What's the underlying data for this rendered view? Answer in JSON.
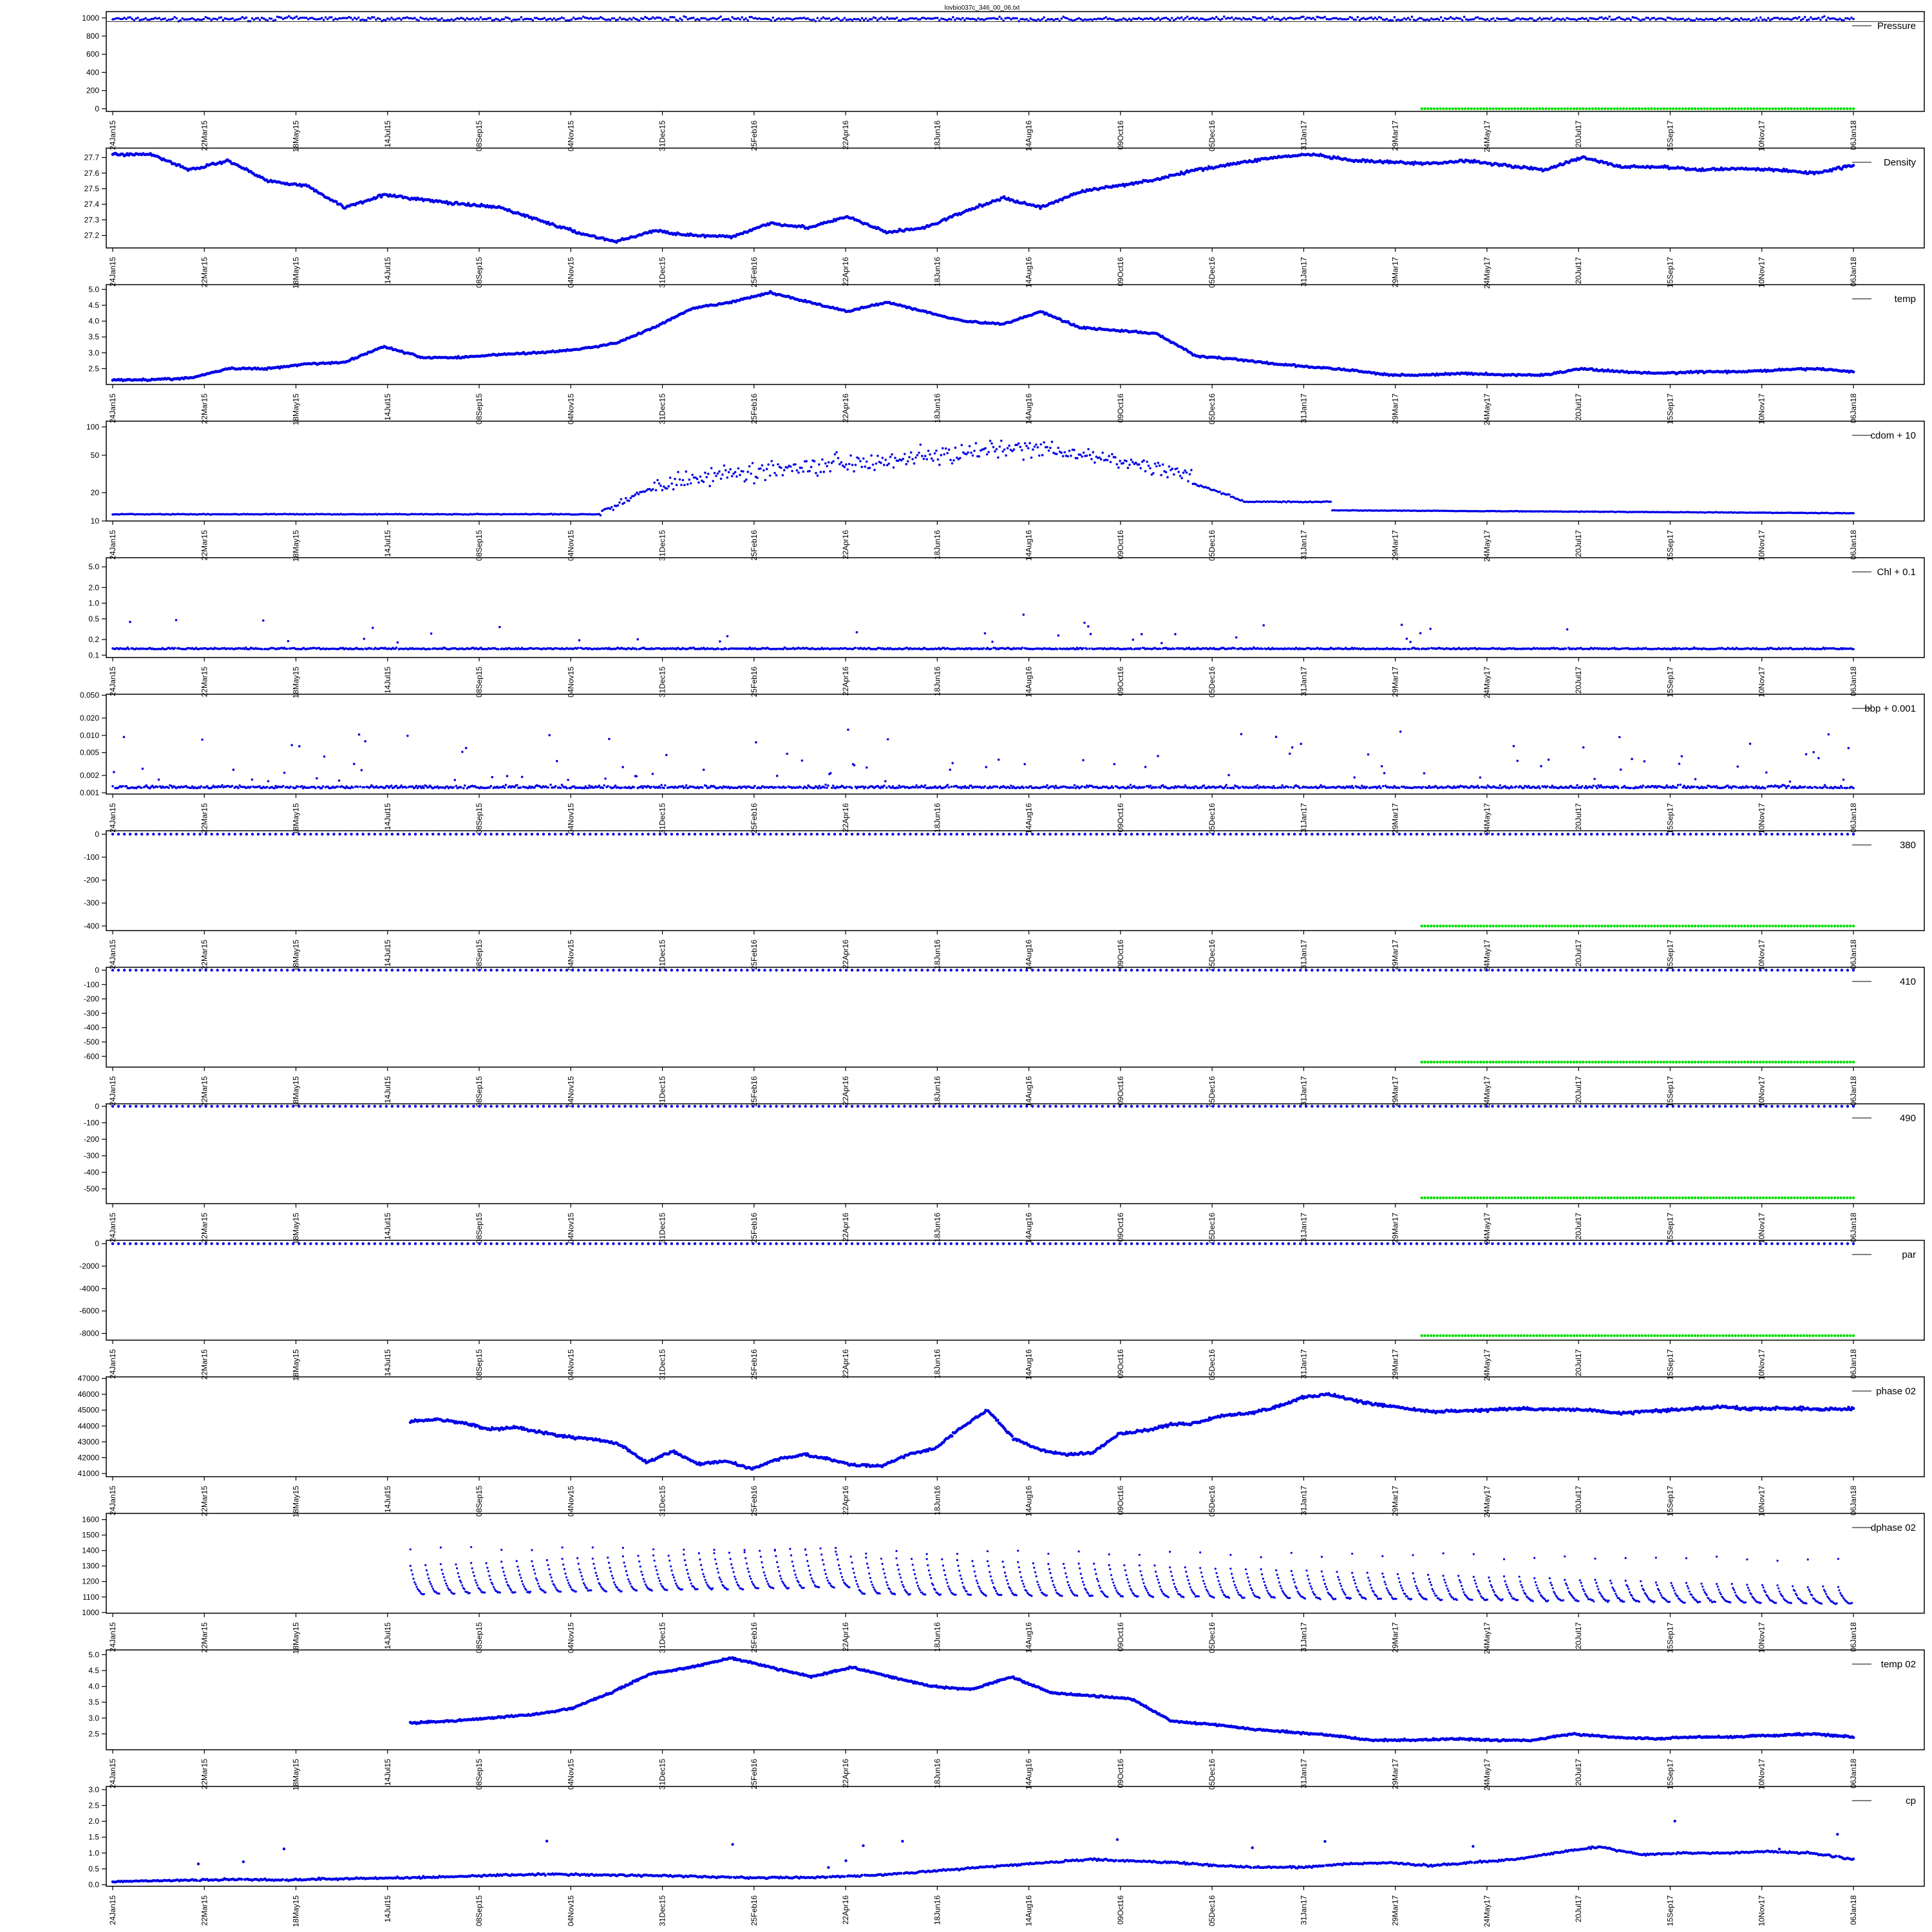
{
  "title": "lovbio037c_346_00_06.txt",
  "colors": {
    "series": "#0000e6",
    "flag": "#00dd00",
    "frame": "#000000"
  },
  "x_ticks": [
    "24Jan15",
    "22Mar15",
    "18May15",
    "14Jul15",
    "08Sep15",
    "04Nov15",
    "31Dec15",
    "25Feb16",
    "22Apr16",
    "18Jun16",
    "14Aug16",
    "09Oct16",
    "05Dec16",
    "31Jan17",
    "29Mar17",
    "24May17",
    "20Jul17",
    "15Sep17",
    "10Nov17",
    "06Jan18"
  ],
  "chart_data": [
    {
      "type": "scatter",
      "legend": "Pressure",
      "scale": "linear",
      "ylim": [
        -30,
        1070
      ],
      "yticks": [
        0,
        200,
        400,
        600,
        800,
        1000
      ],
      "ytick_labels": [
        "0",
        "200",
        "400",
        "600",
        "800",
        "1000"
      ],
      "pattern": "band",
      "x_start": 0,
      "x_end": 1,
      "base": [
        990,
        985,
        995,
        990,
        985,
        990,
        995,
        990,
        985,
        990,
        988,
        985,
        990,
        995,
        990,
        988,
        990,
        985,
        990,
        990
      ],
      "noise": 30,
      "marker": 1.8,
      "hline": 960,
      "flag": {
        "value": 0,
        "x_start": 0.752,
        "x_end": 1
      }
    },
    {
      "type": "scatter",
      "legend": "Density",
      "scale": "linear",
      "ylim": [
        27.12,
        27.76
      ],
      "yticks": [
        27.2,
        27.3,
        27.4,
        27.5,
        27.6,
        27.7
      ],
      "ytick_labels": [
        "27.2",
        "27.3",
        "27.4",
        "27.5",
        "27.6",
        "27.7"
      ],
      "pattern": "line",
      "x_start": 0,
      "x_end": 1,
      "base": [
        27.72,
        27.72,
        27.62,
        27.68,
        27.55,
        27.52,
        27.38,
        27.46,
        27.43,
        27.4,
        27.38,
        27.3,
        27.22,
        27.16,
        27.23,
        27.2,
        27.19,
        27.28,
        27.25,
        27.32,
        27.22,
        27.25,
        27.35,
        27.44,
        27.38,
        27.48,
        27.52,
        27.56,
        27.62,
        27.66,
        27.7,
        27.72,
        27.68,
        27.67,
        27.66,
        27.68,
        27.65,
        27.62,
        27.7,
        27.64,
        27.64,
        27.62,
        27.63,
        27.62,
        27.6,
        27.65
      ],
      "noise": 0.012,
      "marker": 2.4
    },
    {
      "type": "scatter",
      "legend": "temp",
      "scale": "linear",
      "ylim": [
        2.0,
        5.15
      ],
      "yticks": [
        2.5,
        3.0,
        3.5,
        4.0,
        4.5,
        5.0
      ],
      "ytick_labels": [
        "2.5",
        "3.0",
        "3.5",
        "4.0",
        "4.5",
        "5.0"
      ],
      "pattern": "line",
      "x_start": 0,
      "x_end": 1,
      "base": [
        2.15,
        2.15,
        2.2,
        2.5,
        2.5,
        2.65,
        2.7,
        3.2,
        2.85,
        2.85,
        2.95,
        3.0,
        3.1,
        3.3,
        3.8,
        4.4,
        4.6,
        4.9,
        4.6,
        4.3,
        4.6,
        4.3,
        4.0,
        3.9,
        4.3,
        3.8,
        3.7,
        3.6,
        2.9,
        2.8,
        2.65,
        2.55,
        2.45,
        2.3,
        2.3,
        2.35,
        2.3,
        2.3,
        2.5,
        2.4,
        2.35,
        2.4,
        2.4,
        2.45,
        2.5,
        2.4
      ],
      "noise": 0.04,
      "marker": 2.4
    },
    {
      "type": "scatter",
      "legend": "cdom + 10",
      "scale": "log",
      "ylim": [
        10,
        115
      ],
      "yticks": [
        10,
        20,
        50,
        100
      ],
      "ytick_labels": [
        "10",
        "20",
        "50",
        "100"
      ],
      "pattern": "cdom",
      "x_start": 0,
      "x_end": 1,
      "marker": 1.8
    },
    {
      "type": "scatter",
      "legend": "Chl + 0.1",
      "scale": "log",
      "ylim": [
        0.09,
        7.5
      ],
      "yticks": [
        0.1,
        0.2,
        0.5,
        1.0,
        2.0,
        5.0
      ],
      "ytick_labels": [
        "0.1",
        "0.2",
        "0.5",
        "1.0",
        "2.0",
        "5.0"
      ],
      "pattern": "spiky",
      "x_start": 0,
      "x_end": 1,
      "base": [
        0.13,
        0.13
      ],
      "noise": 0.012,
      "spike_max": 0.5,
      "spike_rate": 0.02,
      "marker": 1.8
    },
    {
      "type": "scatter",
      "legend": "bbp + 0.001",
      "scale": "log",
      "ylim": [
        0.00095,
        0.052
      ],
      "yticks": [
        0.001,
        0.002,
        0.005,
        0.01,
        0.02,
        0.05
      ],
      "ytick_labels": [
        "0.001",
        "0.002",
        "0.005",
        "0.010",
        "0.020",
        "0.050"
      ],
      "pattern": "spiky",
      "x_start": 0,
      "x_end": 1,
      "base": [
        0.0012,
        0.0012
      ],
      "noise": 0.0002,
      "spike_max": 0.012,
      "spike_rate": 0.06,
      "marker": 1.8
    },
    {
      "type": "scatter",
      "legend": "380",
      "scale": "linear",
      "ylim": [
        -420,
        15
      ],
      "yticks": [
        -400,
        -300,
        -200,
        -100,
        0
      ],
      "ytick_labels": [
        "-400",
        "-300",
        "-200",
        "-100",
        "0"
      ],
      "pattern": "dotted",
      "x_start": 0,
      "x_end": 1,
      "value": 0,
      "marker": 2.2,
      "flag": {
        "value": -400,
        "x_start": 0.752,
        "x_end": 1
      }
    },
    {
      "type": "scatter",
      "legend": "410",
      "scale": "linear",
      "ylim": [
        -675,
        20
      ],
      "yticks": [
        -600,
        -500,
        -400,
        -300,
        -200,
        -100,
        0
      ],
      "ytick_labels": [
        "-600",
        "-500",
        "-400",
        "-300",
        "-200",
        "-100",
        "0"
      ],
      "pattern": "dotted",
      "x_start": 0,
      "x_end": 1,
      "value": 0,
      "marker": 2.2,
      "flag": {
        "value": -640,
        "x_start": 0.752,
        "x_end": 1
      }
    },
    {
      "type": "scatter",
      "legend": "490",
      "scale": "linear",
      "ylim": [
        -590,
        15
      ],
      "yticks": [
        -500,
        -400,
        -300,
        -200,
        -100,
        0
      ],
      "ytick_labels": [
        "-500",
        "-400",
        "-300",
        "-200",
        "-100",
        "0"
      ],
      "pattern": "dotted",
      "x_start": 0,
      "x_end": 1,
      "value": 0,
      "marker": 2.2,
      "flag": {
        "value": -555,
        "x_start": 0.752,
        "x_end": 1
      }
    },
    {
      "type": "scatter",
      "legend": "par",
      "scale": "linear",
      "ylim": [
        -8600,
        300
      ],
      "yticks": [
        -8000,
        -6000,
        -4000,
        -2000,
        0
      ],
      "ytick_labels": [
        "-8000",
        "-6000",
        "-4000",
        "-2000",
        "0"
      ],
      "pattern": "dotted",
      "x_start": 0,
      "x_end": 1,
      "value": 0,
      "marker": 2.2,
      "flag": {
        "value": -8200,
        "x_start": 0.752,
        "x_end": 1
      }
    },
    {
      "type": "scatter",
      "legend": "phase 02",
      "scale": "linear",
      "ylim": [
        40800,
        47100
      ],
      "yticks": [
        41000,
        42000,
        43000,
        44000,
        45000,
        46000,
        47000
      ],
      "ytick_labels": [
        "41000",
        "42000",
        "43000",
        "44000",
        "45000",
        "46000",
        "47000"
      ],
      "pattern": "line",
      "x_start": 0.171,
      "x_end": 1,
      "base": [
        44300,
        44400,
        44200,
        43800,
        43900,
        43600,
        43300,
        43200,
        42800,
        41700,
        42400,
        41600,
        41800,
        41300,
        41900,
        42200,
        41900,
        41500,
        41500,
        42200,
        42600,
        43900,
        45000,
        43200,
        42500,
        42200,
        42300,
        43500,
        43700,
        44100,
        44200,
        44700,
        44800,
        45200,
        45800,
        46000,
        45600,
        45300,
        45100,
        44900,
        44950,
        45000,
        45100,
        45050,
        45050,
        45000,
        44800,
        44900,
        45000,
        45100,
        45200,
        45100,
        45100,
        45100,
        45050,
        45100
      ],
      "noise": 120,
      "marker": 2.4
    },
    {
      "type": "scatter",
      "legend": "dphase 02",
      "scale": "linear",
      "ylim": [
        995,
        1640
      ],
      "yticks": [
        1000,
        1100,
        1200,
        1300,
        1400,
        1500,
        1600
      ],
      "ytick_labels": [
        "1000",
        "1100",
        "1200",
        "1300",
        "1400",
        "1500",
        "1600"
      ],
      "pattern": "sawtooth",
      "x_start": 0.171,
      "x_end": 1,
      "marker": 1.6
    },
    {
      "type": "scatter",
      "legend": "temp 02",
      "scale": "linear",
      "ylim": [
        2.0,
        5.15
      ],
      "yticks": [
        2.5,
        3.0,
        3.5,
        4.0,
        4.5,
        5.0
      ],
      "ytick_labels": [
        "2.5",
        "3.0",
        "3.5",
        "4.0",
        "4.5",
        "5.0"
      ],
      "pattern": "line",
      "x_start": 0.171,
      "x_end": 1,
      "base": [
        2.85,
        2.9,
        3.0,
        3.1,
        3.3,
        3.8,
        4.4,
        4.6,
        4.9,
        4.6,
        4.3,
        4.6,
        4.3,
        4.0,
        3.9,
        4.3,
        3.8,
        3.7,
        3.6,
        2.9,
        2.8,
        2.65,
        2.55,
        2.45,
        2.3,
        2.3,
        2.35,
        2.3,
        2.3,
        2.5,
        2.4,
        2.35,
        2.4,
        2.4,
        2.45,
        2.5,
        2.4
      ],
      "noise": 0.04,
      "marker": 2.4
    },
    {
      "type": "scatter",
      "legend": "cp",
      "scale": "linear",
      "ylim": [
        -0.05,
        3.1
      ],
      "yticks": [
        0.0,
        0.5,
        1.0,
        1.5,
        2.0,
        2.5,
        3.0
      ],
      "ytick_labels": [
        "0.0",
        "0.5",
        "1.0",
        "1.5",
        "2.0",
        "2.5",
        "3.0"
      ],
      "pattern": "line",
      "x_start": 0,
      "x_end": 1,
      "base": [
        0.1,
        0.12,
        0.15,
        0.17,
        0.15,
        0.18,
        0.2,
        0.22,
        0.25,
        0.3,
        0.33,
        0.32,
        0.3,
        0.28,
        0.25,
        0.22,
        0.22,
        0.25,
        0.3,
        0.4,
        0.5,
        0.6,
        0.7,
        0.8,
        0.75,
        0.7,
        0.6,
        0.55,
        0.55,
        0.65,
        0.7,
        0.6,
        0.7,
        0.8,
        1.0,
        1.2,
        0.95,
        1.0,
        1.0,
        1.05,
        1.0,
        0.8
      ],
      "noise": 0.04,
      "spike_max": 1.2,
      "spike_rate": 0.01,
      "marker": 2.2
    }
  ]
}
